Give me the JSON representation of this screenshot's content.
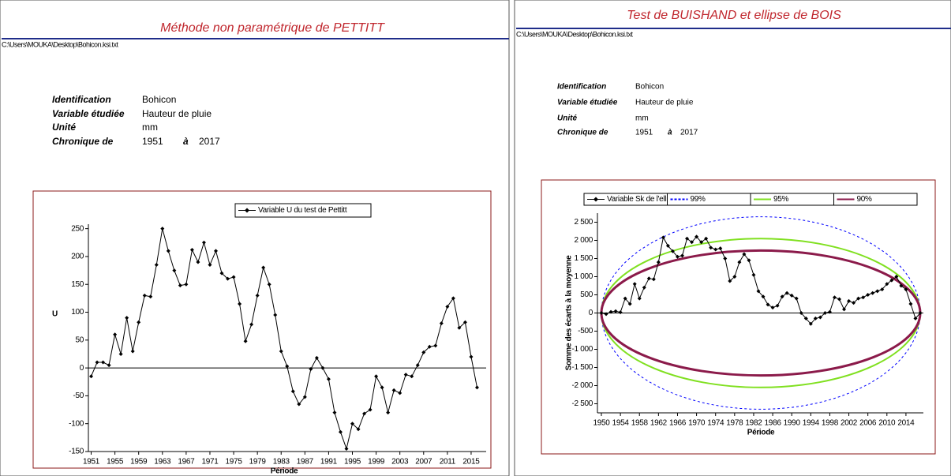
{
  "panels": [
    {
      "title": "Méthode non paramétrique de PETTITT",
      "path": "C:\\Users\\MOUKA\\Desktop\\Bohicon.ksi.txt",
      "info": [
        [
          "Identification",
          "Bohicon"
        ],
        [
          "Variable étudiée",
          "Hauteur de pluie"
        ],
        [
          "Unité",
          "mm"
        ]
      ],
      "period": {
        "label": "Chronique de",
        "start": "1951",
        "sep": "à",
        "end": "2017"
      }
    },
    {
      "title": "Test de BUISHAND et ellipse de BOIS",
      "path": "C:\\Users\\MOUKA\\Desktop\\Bohicon.ksi.txt",
      "info": [
        [
          "Identification",
          "Bohicon"
        ],
        [
          "Variable étudiée",
          "Hauteur de pluie"
        ],
        [
          "Unité",
          "mm"
        ]
      ],
      "period": {
        "label": "Chronique de",
        "start": "1951",
        "sep": "à",
        "end": "2017"
      }
    }
  ],
  "chart_data": [
    {
      "type": "line",
      "ylabel": "U",
      "xlabel": "Période",
      "x": [
        1951,
        1952,
        1953,
        1954,
        1955,
        1956,
        1957,
        1958,
        1959,
        1960,
        1961,
        1962,
        1963,
        1964,
        1965,
        1966,
        1967,
        1968,
        1969,
        1970,
        1971,
        1972,
        1973,
        1974,
        1975,
        1976,
        1977,
        1978,
        1979,
        1980,
        1981,
        1982,
        1983,
        1984,
        1985,
        1986,
        1987,
        1988,
        1989,
        1990,
        1991,
        1992,
        1993,
        1994,
        1995,
        1996,
        1997,
        1998,
        1999,
        2000,
        2001,
        2002,
        2003,
        2004,
        2005,
        2006,
        2007,
        2008,
        2009,
        2010,
        2011,
        2012,
        2013,
        2014,
        2015,
        2016
      ],
      "series": [
        {
          "name": "Variable U du test de Pettitt",
          "color": "#000000",
          "values": [
            -15,
            10,
            10,
            5,
            60,
            25,
            90,
            30,
            82,
            130,
            128,
            185,
            250,
            210,
            175,
            148,
            150,
            212,
            190,
            225,
            185,
            210,
            170,
            160,
            163,
            115,
            48,
            78,
            130,
            180,
            150,
            95,
            30,
            3,
            -42,
            -65,
            -52,
            -2,
            18,
            0,
            -20,
            -80,
            -115,
            -145,
            -100,
            -110,
            -82,
            -75,
            -15,
            -35,
            -80,
            -40,
            -45,
            -12,
            -15,
            5,
            28,
            38,
            40,
            80,
            110,
            125,
            72,
            82,
            20,
            -35
          ]
        }
      ],
      "xlim": [
        1950,
        2017
      ],
      "xticks": [
        1951,
        1955,
        1959,
        1963,
        1967,
        1971,
        1975,
        1979,
        1983,
        1987,
        1991,
        1995,
        1999,
        2003,
        2007,
        2011,
        2015
      ],
      "ylim": [
        -150,
        258
      ],
      "yticks": [
        -150,
        -100,
        -50,
        0,
        50,
        100,
        150,
        200,
        250
      ]
    },
    {
      "type": "line",
      "ylabel": "Somme des écarts à la moyenne",
      "xlabel": "Période",
      "x": [
        1950,
        1951,
        1952,
        1953,
        1954,
        1955,
        1956,
        1957,
        1958,
        1959,
        1960,
        1961,
        1962,
        1963,
        1964,
        1965,
        1966,
        1967,
        1968,
        1969,
        1970,
        1971,
        1972,
        1973,
        1974,
        1975,
        1976,
        1977,
        1978,
        1979,
        1980,
        1981,
        1982,
        1983,
        1984,
        1985,
        1986,
        1987,
        1988,
        1989,
        1990,
        1991,
        1992,
        1993,
        1994,
        1995,
        1996,
        1997,
        1998,
        1999,
        2000,
        2001,
        2002,
        2003,
        2004,
        2005,
        2006,
        2007,
        2008,
        2009,
        2010,
        2011,
        2012,
        2013,
        2014,
        2015,
        2016,
        2017
      ],
      "series": [
        {
          "name": "Variable Sk de l'ellipse",
          "color": "#000000",
          "values": [
            0,
            -30,
            30,
            50,
            20,
            400,
            250,
            800,
            400,
            700,
            950,
            930,
            1400,
            2080,
            1850,
            1700,
            1550,
            1580,
            2050,
            1950,
            2100,
            1950,
            2050,
            1800,
            1750,
            1780,
            1500,
            880,
            1000,
            1400,
            1620,
            1450,
            1050,
            600,
            450,
            230,
            150,
            200,
            450,
            550,
            480,
            400,
            0,
            -150,
            -300,
            -150,
            -120,
            0,
            30,
            430,
            380,
            100,
            330,
            280,
            400,
            430,
            500,
            550,
            600,
            650,
            800,
            900,
            1000,
            750,
            650,
            250,
            -150,
            0
          ]
        }
      ],
      "ellipses": [
        {
          "name": "99%",
          "color": "#0000ff",
          "semi_axis": 2650
        },
        {
          "name": "95%",
          "color": "#80e020",
          "semi_axis": 2050
        },
        {
          "name": "90%",
          "color": "#8b1a4a",
          "semi_axis": 1720
        }
      ],
      "xlim": [
        1950,
        2017
      ],
      "xticks": [
        1950,
        1954,
        1958,
        1962,
        1966,
        1970,
        1974,
        1978,
        1982,
        1986,
        1990,
        1994,
        1998,
        2002,
        2006,
        2010,
        2014
      ],
      "ylim": [
        -2750,
        2750
      ],
      "yticks": [
        {
          "value": -2500,
          "label": "-2 500"
        },
        {
          "value": -2000,
          "label": "-2 000"
        },
        {
          "value": -1500,
          "label": "-1 500"
        },
        {
          "value": -1000,
          "label": "-1 000"
        },
        -500,
        0,
        500,
        {
          "value": 1000,
          "label": "1 000"
        },
        {
          "value": 1500,
          "label": "1 500"
        },
        {
          "value": 2000,
          "label": "2 000"
        },
        {
          "value": 2500,
          "label": "2 500"
        }
      ]
    }
  ]
}
